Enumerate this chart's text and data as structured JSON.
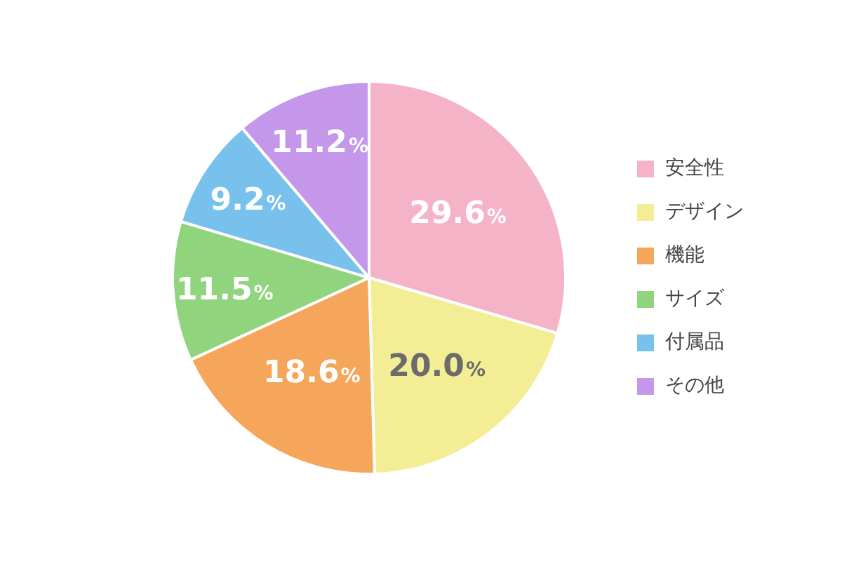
{
  "chart_data": {
    "type": "pie",
    "categories": [
      "安全性",
      "デザイン",
      "機能",
      "サイズ",
      "付属品",
      "その他"
    ],
    "values": [
      29.6,
      20.0,
      18.6,
      11.5,
      9.2,
      11.2
    ],
    "colors": [
      "#f5b3c8",
      "#f3ee96",
      "#f5a65a",
      "#90d47e",
      "#78c1ec",
      "#c597eb"
    ],
    "value_labels": [
      "29.6%",
      "20.0%",
      "18.6%",
      "11.5%",
      "9.2%",
      "11.2%"
    ],
    "legend": "right"
  }
}
